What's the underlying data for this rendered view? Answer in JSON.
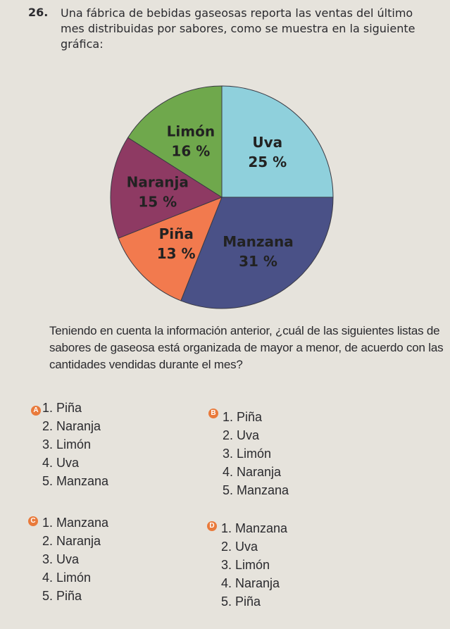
{
  "question": {
    "number": "26.",
    "text": "Una fábrica de bebidas gaseosas reporta las ventas del último mes distribuidas por sabores, como se muestra en la siguiente gráfica:"
  },
  "chart_data": {
    "type": "pie",
    "categories": [
      "Uva",
      "Manzana",
      "Piña",
      "Naranja",
      "Limón"
    ],
    "values": [
      25,
      31,
      13,
      15,
      16
    ],
    "value_labels": [
      "25 %",
      "31 %",
      "13 %",
      "15 %",
      "16 %"
    ],
    "colors": [
      "#8fd0dc",
      "#4a5187",
      "#f27a4e",
      "#8e3a63",
      "#6fa84c"
    ]
  },
  "prompt": "Teniendo en cuenta la información anterior, ¿cuál de las siguientes listas de sabores de gaseosa está organizada de mayor a menor, de acuerdo con las cantidades vendidas durante el mes?",
  "options": [
    {
      "letter": "A",
      "items": [
        "1. Piña",
        "2. Naranja",
        "3. Limón",
        "4. Uva",
        "5. Manzana"
      ]
    },
    {
      "letter": "B",
      "items": [
        "1. Piña",
        "2. Uva",
        "3. Limón",
        "4. Naranja",
        "5. Manzana"
      ]
    },
    {
      "letter": "C",
      "items": [
        "1. Manzana",
        "2. Naranja",
        "3. Uva",
        "4. Limón",
        "5. Piña"
      ]
    },
    {
      "letter": "D",
      "items": [
        "1. Manzana",
        "2. Uva",
        "3. Limón",
        "4. Naranja",
        "5. Piña"
      ]
    }
  ]
}
